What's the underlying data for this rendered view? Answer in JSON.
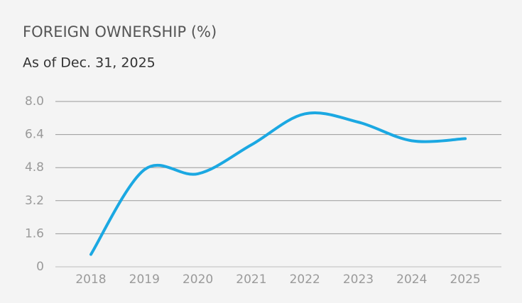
{
  "chart_data": {
    "type": "line",
    "title": "FOREIGN OWNERSHIP (%)",
    "subtitle": "As of Dec. 31, 2025",
    "categories": [
      "2018",
      "2019",
      "2020",
      "2021",
      "2022",
      "2023",
      "2024",
      "2025"
    ],
    "values": [
      0.6,
      4.7,
      4.5,
      5.9,
      7.4,
      7.0,
      6.1,
      6.2
    ],
    "color": "#1ba8e2",
    "smooth": true,
    "ylim": [
      0,
      8
    ],
    "yticks": [
      0,
      1.6,
      3.2,
      4.8,
      6.4,
      {
        "value": 8,
        "label": "8.0"
      }
    ],
    "grid": true
  }
}
